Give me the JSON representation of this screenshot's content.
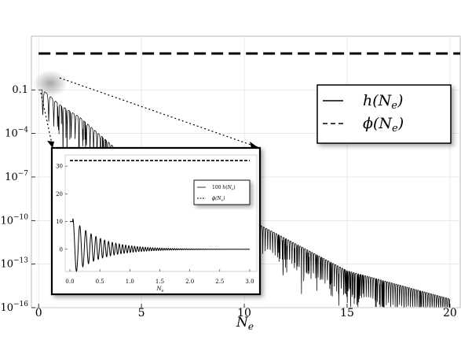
{
  "chart_data": {
    "type": "line",
    "main": {
      "xlabel": "N_e",
      "x_ticks": [
        0,
        5,
        10,
        15,
        20
      ],
      "y_ticks": [
        {
          "value": 0.1,
          "label": "0.1"
        },
        {
          "value": 0.0001,
          "label": "10^-4"
        },
        {
          "value": 1e-07,
          "label": "10^-7"
        },
        {
          "value": 1e-10,
          "label": "10^-10"
        },
        {
          "value": 1e-13,
          "label": "10^-13"
        },
        {
          "value": 1e-16,
          "label": "10^-16"
        }
      ],
      "xlim": [
        -0.35,
        20.5
      ],
      "ylim": [
        1e-16,
        500
      ],
      "yscale": "log",
      "grid": true,
      "legend": {
        "placement": "top-right",
        "entries": [
          {
            "label": "h(N_e)",
            "style": "solid"
          },
          {
            "label": "ϕ(N_e)",
            "style": "dashed"
          }
        ]
      },
      "series": [
        {
          "name": "h(N_e)",
          "style": "solid",
          "shape": "damped oscillation with exponentially decaying envelope",
          "x": [
            0,
            0.2,
            1,
            2,
            5,
            10,
            15,
            20
          ],
          "y": [
            0.1,
            0.1,
            0.01,
            0.0013,
            2.6e-07,
            1.8e-10,
            3.5e-14,
            4e-16
          ]
        },
        {
          "name": "ϕ(N_e)",
          "style": "dashed",
          "x": [
            0,
            20.5
          ],
          "y": [
            32,
            32
          ]
        }
      ]
    },
    "inset": {
      "xlabel": "N_e",
      "x_ticks": [
        "0.0",
        "0.5",
        "1.0",
        "1.5",
        "2.0",
        "2.5",
        "3.0"
      ],
      "y_ticks": [
        "0",
        "10",
        "20",
        "30"
      ],
      "xlim": [
        0,
        3
      ],
      "ylim": [
        -8,
        34
      ],
      "legend": {
        "placement": "right",
        "entries": [
          {
            "label": "100 h(N_e)",
            "style": "solid"
          },
          {
            "label": "ϕ(N_e)",
            "style": "dashed"
          }
        ]
      },
      "series": [
        {
          "name": "100 h(N_e)",
          "style": "solid",
          "x": [
            0,
            0.04,
            0.1,
            0.17,
            0.24,
            0.3,
            0.38,
            0.5,
            1.0,
            2.0,
            3.0
          ],
          "y": [
            10,
            10,
            6,
            -7,
            4,
            -4,
            3,
            2,
            0.7,
            0.1,
            0
          ]
        },
        {
          "name": "ϕ(N_e)",
          "style": "dashed",
          "x": [
            0,
            3
          ],
          "y": [
            32,
            32
          ]
        }
      ]
    }
  }
}
